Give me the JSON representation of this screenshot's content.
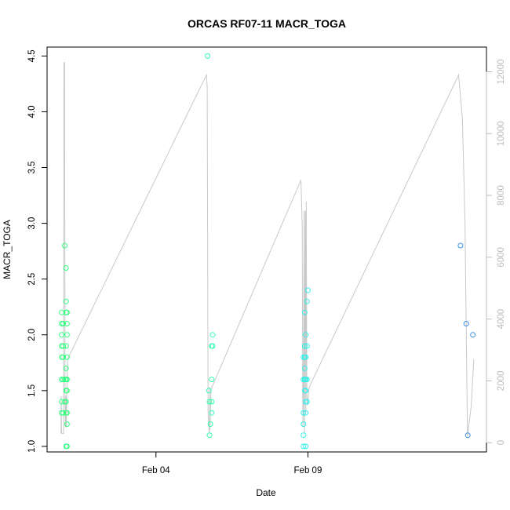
{
  "chart_data": {
    "type": "scatter",
    "title": "ORCAS RF07-11 MACR_TOGA",
    "xlabel": "Date",
    "ylabel": "MACR_TOGA",
    "xlim": [
      "2016-01-31T10:00",
      "2016-02-14T21:00"
    ],
    "ylim": [
      0.95,
      4.58
    ],
    "x_ticks": [
      {
        "x": "2016-02-04T00:00",
        "label": "Feb 04"
      },
      {
        "x": "2016-02-09T00:00",
        "label": "Feb 09"
      }
    ],
    "y_ticks": [
      "1.0",
      "1.5",
      "2.0",
      "2.5",
      "3.0",
      "3.5",
      "4.0",
      "4.5"
    ],
    "y2lim": [
      -300,
      12800
    ],
    "y2_ticks": [
      "0",
      "2000",
      "4000",
      "6000",
      "8000",
      "10000",
      "12000"
    ],
    "grid": false,
    "legend": "none",
    "colors": {
      "axis": "#000000",
      "altitude_line": "#c8c8c8",
      "right_axis": "#bdbdbd"
    },
    "series": [
      {
        "marker": "open-circle",
        "points": [
          {
            "x": "2016-01-31T21:30",
            "y": 1.3,
            "color": "#33ff80"
          },
          {
            "x": "2016-01-31T21:30",
            "y": 1.4,
            "color": "#33ff80"
          },
          {
            "x": "2016-01-31T21:30",
            "y": 1.6,
            "color": "#33ff80"
          },
          {
            "x": "2016-01-31T21:30",
            "y": 1.8,
            "color": "#33ff80"
          },
          {
            "x": "2016-01-31T21:30",
            "y": 1.9,
            "color": "#33ff80"
          },
          {
            "x": "2016-01-31T21:30",
            "y": 2.0,
            "color": "#33ff80"
          },
          {
            "x": "2016-01-31T21:30",
            "y": 2.1,
            "color": "#33ff80"
          },
          {
            "x": "2016-01-31T21:30",
            "y": 2.2,
            "color": "#33ff80"
          },
          {
            "x": "2016-01-31T22:45",
            "y": 1.3,
            "color": "#33ff80"
          },
          {
            "x": "2016-01-31T22:45",
            "y": 1.6,
            "color": "#33ff80"
          },
          {
            "x": "2016-01-31T22:45",
            "y": 1.8,
            "color": "#33ff80"
          },
          {
            "x": "2016-01-31T22:45",
            "y": 1.9,
            "color": "#33ff80"
          },
          {
            "x": "2016-01-31T22:45",
            "y": 2.1,
            "color": "#33ff80"
          },
          {
            "x": "2016-02-01T00:00",
            "y": 2.8,
            "color": "#33ff80"
          },
          {
            "x": "2016-02-01T00:00",
            "y": 1.4,
            "color": "#33ff80"
          },
          {
            "x": "2016-02-01T00:00",
            "y": 1.6,
            "color": "#33ff80"
          },
          {
            "x": "2016-02-01T01:00",
            "y": 1.0,
            "color": "#33ff80"
          },
          {
            "x": "2016-02-01T01:00",
            "y": 1.3,
            "color": "#33ff80"
          },
          {
            "x": "2016-02-01T01:00",
            "y": 1.4,
            "color": "#33ff80"
          },
          {
            "x": "2016-02-01T01:00",
            "y": 1.5,
            "color": "#33ff80"
          },
          {
            "x": "2016-02-01T01:00",
            "y": 1.6,
            "color": "#33ff80"
          },
          {
            "x": "2016-02-01T01:00",
            "y": 1.7,
            "color": "#33ff80"
          },
          {
            "x": "2016-02-01T01:00",
            "y": 1.9,
            "color": "#33ff80"
          },
          {
            "x": "2016-02-01T01:00",
            "y": 2.2,
            "color": "#33ff80"
          },
          {
            "x": "2016-02-01T01:00",
            "y": 2.3,
            "color": "#33ff80"
          },
          {
            "x": "2016-02-01T01:00",
            "y": 2.6,
            "color": "#33ff80"
          },
          {
            "x": "2016-02-01T01:45",
            "y": 1.0,
            "color": "#33ff80"
          },
          {
            "x": "2016-02-01T01:45",
            "y": 1.2,
            "color": "#33ff80"
          },
          {
            "x": "2016-02-01T01:45",
            "y": 1.3,
            "color": "#33ff80"
          },
          {
            "x": "2016-02-01T01:45",
            "y": 1.5,
            "color": "#33ff80"
          },
          {
            "x": "2016-02-01T01:45",
            "y": 1.6,
            "color": "#33ff80"
          },
          {
            "x": "2016-02-01T01:45",
            "y": 1.8,
            "color": "#33ff80"
          },
          {
            "x": "2016-02-01T01:45",
            "y": 2.0,
            "color": "#33ff80"
          },
          {
            "x": "2016-02-01T01:45",
            "y": 2.1,
            "color": "#33ff80"
          },
          {
            "x": "2016-02-01T01:45",
            "y": 2.2,
            "color": "#33ff80"
          },
          {
            "x": "2016-02-05T16:45",
            "y": 4.5,
            "color": "#33ffb0"
          },
          {
            "x": "2016-02-05T17:45",
            "y": 1.5,
            "color": "#33ffb0"
          },
          {
            "x": "2016-02-05T18:15",
            "y": 1.1,
            "color": "#33ffb0"
          },
          {
            "x": "2016-02-05T18:15",
            "y": 1.4,
            "color": "#33ffb0"
          },
          {
            "x": "2016-02-05T19:00",
            "y": 1.2,
            "color": "#33ffb0"
          },
          {
            "x": "2016-02-05T20:00",
            "y": 1.3,
            "color": "#33ffb0"
          },
          {
            "x": "2016-02-05T20:00",
            "y": 1.4,
            "color": "#33ffb0"
          },
          {
            "x": "2016-02-05T20:00",
            "y": 1.6,
            "color": "#33ffb0"
          },
          {
            "x": "2016-02-05T20:00",
            "y": 1.9,
            "color": "#33ffb0"
          },
          {
            "x": "2016-02-05T20:45",
            "y": 1.9,
            "color": "#33ffb0"
          },
          {
            "x": "2016-02-05T20:45",
            "y": 2.0,
            "color": "#33ffb0"
          },
          {
            "x": "2016-02-08T20:30",
            "y": 1.0,
            "color": "#33f0e8"
          },
          {
            "x": "2016-02-08T20:30",
            "y": 1.1,
            "color": "#33f0e8"
          },
          {
            "x": "2016-02-08T20:30",
            "y": 1.2,
            "color": "#33f0e8"
          },
          {
            "x": "2016-02-08T20:30",
            "y": 1.3,
            "color": "#33f0e8"
          },
          {
            "x": "2016-02-08T20:30",
            "y": 1.6,
            "color": "#33f0e8"
          },
          {
            "x": "2016-02-08T20:30",
            "y": 1.8,
            "color": "#33f0e8"
          },
          {
            "x": "2016-02-08T21:30",
            "y": 1.5,
            "color": "#33f0e8"
          },
          {
            "x": "2016-02-08T21:30",
            "y": 1.6,
            "color": "#33f0e8"
          },
          {
            "x": "2016-02-08T21:30",
            "y": 1.7,
            "color": "#33f0e8"
          },
          {
            "x": "2016-02-08T21:30",
            "y": 1.8,
            "color": "#33f0e8"
          },
          {
            "x": "2016-02-08T21:30",
            "y": 1.9,
            "color": "#33f0e8"
          },
          {
            "x": "2016-02-08T21:30",
            "y": 2.2,
            "color": "#33f0e8"
          },
          {
            "x": "2016-02-08T22:15",
            "y": 1.0,
            "color": "#33f0e8"
          },
          {
            "x": "2016-02-08T22:15",
            "y": 1.3,
            "color": "#33f0e8"
          },
          {
            "x": "2016-02-08T22:15",
            "y": 1.4,
            "color": "#33f0e8"
          },
          {
            "x": "2016-02-08T22:15",
            "y": 1.5,
            "color": "#33f0e8"
          },
          {
            "x": "2016-02-08T22:15",
            "y": 1.6,
            "color": "#33f0e8"
          },
          {
            "x": "2016-02-08T22:15",
            "y": 1.8,
            "color": "#33f0e8"
          },
          {
            "x": "2016-02-08T22:15",
            "y": 2.0,
            "color": "#33f0e8"
          },
          {
            "x": "2016-02-08T23:15",
            "y": 1.4,
            "color": "#33f0e8"
          },
          {
            "x": "2016-02-08T23:15",
            "y": 1.6,
            "color": "#33f0e8"
          },
          {
            "x": "2016-02-08T23:15",
            "y": 1.9,
            "color": "#33f0e8"
          },
          {
            "x": "2016-02-08T23:15",
            "y": 2.3,
            "color": "#33f0e8"
          },
          {
            "x": "2016-02-09T00:00",
            "y": 2.4,
            "color": "#33f0e8"
          },
          {
            "x": "2016-02-14T00:30",
            "y": 2.8,
            "color": "#3a8fe8"
          },
          {
            "x": "2016-02-14T05:00",
            "y": 2.1,
            "color": "#3a8fe8"
          },
          {
            "x": "2016-02-14T06:15",
            "y": 1.1,
            "color": "#3a8fe8"
          },
          {
            "x": "2016-02-14T10:15",
            "y": 2.0,
            "color": "#3a8fe8"
          }
        ]
      }
    ],
    "altitude_segments": [
      [
        {
          "x": "2016-01-31T21:00",
          "alt": 300
        },
        {
          "x": "2016-01-31T21:10",
          "alt": 1500
        },
        {
          "x": "2016-01-31T21:20",
          "alt": 500
        },
        {
          "x": "2016-01-31T21:30",
          "alt": 300
        },
        {
          "x": "2016-01-31T23:00",
          "alt": 300
        },
        {
          "x": "2016-01-31T23:20",
          "alt": 12300
        },
        {
          "x": "2016-01-31T23:50",
          "alt": 12300
        },
        {
          "x": "2016-02-01T00:10",
          "alt": 1200
        },
        {
          "x": "2016-02-01T00:30",
          "alt": 500
        },
        {
          "x": "2016-02-01T00:50",
          "alt": 1500
        },
        {
          "x": "2016-02-01T01:10",
          "alt": 500
        },
        {
          "x": "2016-02-01T01:40",
          "alt": 1800
        },
        {
          "x": "2016-02-01T02:10",
          "alt": 2700
        },
        {
          "x": "2016-02-05T15:50",
          "alt": 11900
        },
        {
          "x": "2016-02-05T16:30",
          "alt": 11500
        },
        {
          "x": "2016-02-05T17:10",
          "alt": 1000
        },
        {
          "x": "2016-02-05T18:00",
          "alt": 300
        },
        {
          "x": "2016-02-05T18:40",
          "alt": 1800
        }
      ],
      [
        {
          "x": "2016-02-05T18:40",
          "alt": 400
        },
        {
          "x": "2016-02-05T19:30",
          "alt": 1700
        },
        {
          "x": "2016-02-05T20:15",
          "alt": 1800
        },
        {
          "x": "2016-02-08T18:30",
          "alt": 8500
        },
        {
          "x": "2016-02-08T19:30",
          "alt": 7000
        },
        {
          "x": "2016-02-08T20:00",
          "alt": 500
        },
        {
          "x": "2016-02-08T20:30",
          "alt": 1500
        },
        {
          "x": "2016-02-08T21:00",
          "alt": 7500
        },
        {
          "x": "2016-02-08T21:20",
          "alt": 300
        },
        {
          "x": "2016-02-08T21:40",
          "alt": 4000
        },
        {
          "x": "2016-02-08T22:00",
          "alt": 7500
        },
        {
          "x": "2016-02-08T22:20",
          "alt": 1000
        },
        {
          "x": "2016-02-08T22:40",
          "alt": 7800
        },
        {
          "x": "2016-02-08T23:10",
          "alt": 1500
        },
        {
          "x": "2016-02-08T23:40",
          "alt": 1200
        }
      ],
      [
        {
          "x": "2016-02-09T00:00",
          "alt": 1300
        },
        {
          "x": "2016-02-09T01:00",
          "alt": 1800
        },
        {
          "x": "2016-02-13T23:00",
          "alt": 11900
        },
        {
          "x": "2016-02-14T02:00",
          "alt": 10500
        },
        {
          "x": "2016-02-14T04:00",
          "alt": 7200
        },
        {
          "x": "2016-02-14T06:00",
          "alt": 200
        },
        {
          "x": "2016-02-14T09:00",
          "alt": 1200
        },
        {
          "x": "2016-02-14T11:00",
          "alt": 2700
        }
      ]
    ]
  }
}
